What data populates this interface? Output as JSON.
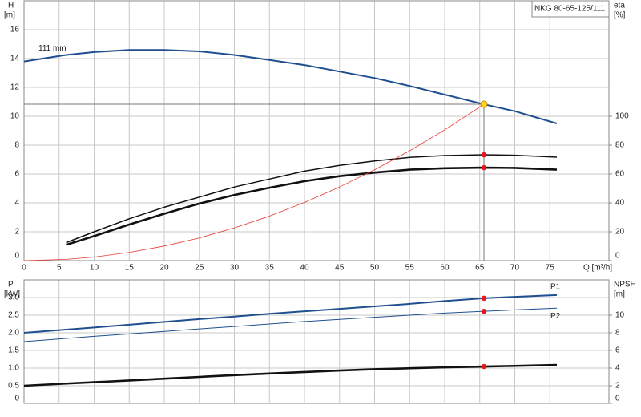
{
  "chart_data": [
    {
      "type": "line",
      "title": "NKG 80-65-125/111",
      "xlabel": "Q [m³/h]",
      "ylabel": "H",
      "yunit": "[m]",
      "y2label": "eta",
      "y2unit": "[%]",
      "grid": true,
      "xlim": [
        0,
        83.43
      ],
      "xticks": [
        0,
        5,
        10,
        15,
        20,
        25,
        30,
        35,
        40,
        45,
        50,
        55,
        60,
        65,
        70,
        75
      ],
      "ylim": [
        0,
        18
      ],
      "yticks": [
        0,
        2,
        4,
        6,
        8,
        10,
        12,
        14,
        16
      ],
      "y2lim": [
        0,
        180
      ],
      "y2ticks": [
        0,
        20,
        40,
        60,
        80,
        100
      ],
      "x": [
        0,
        6,
        10,
        15,
        20,
        25,
        30,
        35,
        40,
        45,
        50,
        55,
        60,
        65.6,
        70,
        76
      ],
      "series": [
        {
          "name": "111 mm",
          "color": "#1f4f8f",
          "linewidth": 2,
          "axis": "y",
          "values": [
            13.8,
            14.25,
            14.45,
            14.6,
            14.6,
            14.5,
            14.25,
            13.9,
            13.55,
            13.1,
            12.65,
            12.1,
            11.5,
            10.83,
            10.35,
            9.5
          ]
        },
        {
          "color": "#111111",
          "linewidth": 1.5,
          "axis": "y2",
          "values": [
            null,
            12.5,
            20,
            29,
            37,
            44,
            51,
            56.5,
            62,
            66,
            69,
            71.5,
            72.8,
            73.3,
            73,
            71.7
          ]
        },
        {
          "color": "#111111",
          "linewidth": 2.6,
          "axis": "y2",
          "values": [
            null,
            11,
            17,
            25,
            32.5,
            39.5,
            45.5,
            50.5,
            55,
            58.5,
            61,
            63,
            64,
            64.4,
            64.2,
            63
          ]
        },
        {
          "color": "#e8392f",
          "linewidth": 0.8,
          "axis": "y",
          "values": [
            0,
            0.09,
            0.25,
            0.57,
            1.01,
            1.57,
            2.27,
            3.08,
            4.03,
            5.1,
            6.29,
            7.61,
            9.06,
            10.83,
            null,
            null
          ]
        }
      ],
      "duty_points": [
        {
          "x": 65.6,
          "y": 10.83,
          "axis": "y",
          "color": "#ffd21f"
        },
        {
          "x": 65.6,
          "y": 73.3,
          "axis": "y2",
          "color": "#e8161b"
        },
        {
          "x": 65.6,
          "y": 64.4,
          "axis": "y2",
          "color": "#e8161b"
        }
      ]
    },
    {
      "type": "line",
      "ylabel": "P",
      "yunit": "[kW]",
      "y2label": "NPSH",
      "y2unit": "[m]",
      "grid": true,
      "ylim": [
        0,
        3.5
      ],
      "yticks": [
        0,
        0.5,
        {
          "value": 1,
          "label": "1.0"
        },
        1.5,
        {
          "value": 2,
          "label": "2.0"
        },
        2.5,
        {
          "value": 3,
          "label": "3.0"
        }
      ],
      "y2lim": [
        0,
        14
      ],
      "y2ticks": [
        0,
        2,
        4,
        6,
        8,
        10
      ],
      "x": [
        0,
        6,
        10,
        15,
        20,
        25,
        30,
        35,
        40,
        45,
        50,
        55,
        60,
        65.6,
        70,
        76
      ],
      "series": [
        {
          "name": "P1",
          "color": "#1f4f8f",
          "linewidth": 2,
          "axis": "y",
          "values": [
            2.0,
            2.09,
            2.15,
            2.23,
            2.31,
            2.39,
            2.46,
            2.54,
            2.61,
            2.68,
            2.75,
            2.82,
            2.9,
            2.98,
            3.02,
            3.07
          ]
        },
        {
          "name": "P2",
          "color": "#1f4f8f",
          "linewidth": 1,
          "axis": "y",
          "values": [
            1.75,
            1.84,
            1.9,
            1.97,
            2.04,
            2.11,
            2.18,
            2.25,
            2.32,
            2.38,
            2.44,
            2.5,
            2.56,
            2.61,
            2.65,
            2.7
          ]
        },
        {
          "color": "#111111",
          "linewidth": 2.6,
          "axis": "y2",
          "values": [
            2.0,
            2.25,
            2.4,
            2.6,
            2.8,
            3.0,
            3.2,
            3.38,
            3.55,
            3.72,
            3.87,
            3.98,
            4.08,
            4.18,
            4.25,
            4.36
          ]
        }
      ],
      "duty_points": [
        {
          "x": 65.6,
          "y": 2.98,
          "axis": "y",
          "color": "#e8161b"
        },
        {
          "x": 65.6,
          "y": 2.61,
          "axis": "y",
          "color": "#e8161b"
        },
        {
          "x": 65.6,
          "y": 4.18,
          "axis": "y2",
          "color": "#e8161b"
        }
      ]
    }
  ]
}
